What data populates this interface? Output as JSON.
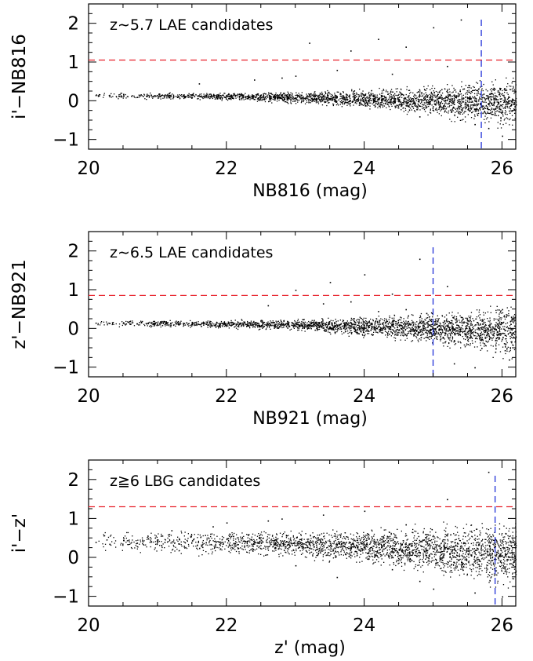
{
  "chart_data": [
    {
      "type": "scatter",
      "annotation": "z∼5.7 LAE candidates",
      "xlabel": "NB816 (mag)",
      "ylabel": "i'−NB816",
      "xlim": [
        20,
        26.2
      ],
      "ylim": [
        -1.25,
        2.5
      ],
      "xticks": [
        20,
        22,
        24,
        26
      ],
      "xtick_labels": [
        "20",
        "22",
        "24",
        "26"
      ],
      "yticks": [
        -1,
        0,
        1,
        2
      ],
      "ytick_labels": [
        "−1",
        "0",
        "1",
        "2"
      ],
      "color_cut": 1.05,
      "mag_limit": 25.7,
      "points": {
        "x": [
          20.1,
          20.3,
          20.5,
          20.7,
          20.9,
          21.1,
          21.3,
          21.5,
          21.7,
          21.9,
          22.1,
          22.3,
          22.5,
          22.7,
          22.9,
          23.1,
          23.3,
          23.5,
          23.7,
          23.9,
          24.1,
          24.3,
          24.5,
          24.7,
          24.9,
          25.1,
          25.3,
          25.5,
          25.7,
          25.9,
          26.1,
          23.2,
          23.8,
          24.2,
          24.6,
          25.0,
          25.4,
          22.8,
          23.6,
          24.4,
          25.2,
          25.8,
          21.6,
          22.4,
          23.0,
          24.8,
          25.6,
          26.0
        ],
        "y": [
          0.15,
          0.12,
          0.18,
          0.1,
          0.16,
          0.14,
          0.11,
          0.17,
          0.13,
          0.09,
          0.15,
          0.12,
          0.1,
          0.08,
          0.11,
          0.09,
          0.07,
          0.05,
          0.06,
          0.04,
          0.02,
          0.03,
          0.0,
          0.01,
          -0.02,
          -0.05,
          -0.08,
          -0.1,
          -0.15,
          -0.2,
          -0.25,
          1.5,
          1.3,
          1.6,
          1.4,
          1.9,
          2.1,
          0.6,
          0.8,
          0.7,
          0.9,
          -0.7,
          0.45,
          0.55,
          0.65,
          -0.4,
          -0.6,
          -0.9
        ]
      }
    },
    {
      "type": "scatter",
      "annotation": "z∼6.5 LAE candidates",
      "xlabel": "NB921 (mag)",
      "ylabel": "z'−NB921",
      "xlim": [
        20,
        26.2
      ],
      "ylim": [
        -1.25,
        2.5
      ],
      "xticks": [
        20,
        22,
        24,
        26
      ],
      "xtick_labels": [
        "20",
        "22",
        "24",
        "26"
      ],
      "yticks": [
        -1,
        0,
        1,
        2
      ],
      "ytick_labels": [
        "−1",
        "0",
        "1",
        "2"
      ],
      "color_cut": 0.85,
      "mag_limit": 25.0,
      "points": {
        "x": [
          20.1,
          20.3,
          20.5,
          20.7,
          20.9,
          21.1,
          21.3,
          21.5,
          21.7,
          21.9,
          22.1,
          22.3,
          22.5,
          22.7,
          22.9,
          23.1,
          23.3,
          23.5,
          23.7,
          23.9,
          24.1,
          24.3,
          24.5,
          24.7,
          24.9,
          25.1,
          25.3,
          25.5,
          25.7,
          25.9,
          26.1,
          23.0,
          23.5,
          24.0,
          24.4,
          24.8,
          25.2,
          25.6,
          22.6,
          23.8,
          24.6,
          25.4,
          25.9,
          26.0,
          25.3,
          24.9,
          24.2,
          23.4
        ],
        "y": [
          0.15,
          0.14,
          0.16,
          0.13,
          0.15,
          0.12,
          0.14,
          0.11,
          0.13,
          0.1,
          0.12,
          0.1,
          0.09,
          0.1,
          0.08,
          0.07,
          0.06,
          0.05,
          0.04,
          0.03,
          0.02,
          0.0,
          -0.02,
          -0.05,
          -0.1,
          -0.2,
          -0.3,
          -0.4,
          -0.5,
          -0.6,
          -0.8,
          1.0,
          1.2,
          1.4,
          0.9,
          1.8,
          1.1,
          -1.0,
          0.6,
          0.7,
          0.5,
          0.3,
          -0.3,
          0.5,
          -0.9,
          0.4,
          0.45,
          0.65
        ]
      }
    },
    {
      "type": "scatter",
      "annotation": "z≧6 LBG candidates",
      "xlabel": "z' (mag)",
      "ylabel": "i'−z'",
      "xlim": [
        20,
        26.2
      ],
      "ylim": [
        -1.25,
        2.5
      ],
      "xticks": [
        20,
        22,
        24,
        26
      ],
      "xtick_labels": [
        "20",
        "22",
        "24",
        "26"
      ],
      "yticks": [
        -1,
        0,
        1,
        2
      ],
      "ytick_labels": [
        "−1",
        "0",
        "1",
        "2"
      ],
      "color_cut": 1.3,
      "mag_limit": 25.9,
      "points": {
        "x": [
          20.1,
          20.3,
          20.5,
          20.7,
          20.9,
          21.1,
          21.3,
          21.5,
          21.7,
          21.9,
          22.1,
          22.3,
          22.5,
          22.7,
          22.9,
          23.1,
          23.3,
          23.5,
          23.7,
          23.9,
          24.1,
          24.3,
          24.5,
          24.7,
          24.9,
          25.1,
          25.3,
          25.5,
          25.7,
          25.9,
          26.1,
          22.0,
          22.8,
          23.4,
          24.0,
          24.6,
          25.2,
          25.8,
          23.0,
          23.6,
          24.4,
          25.0,
          25.6,
          21.2,
          21.8,
          22.6,
          24.8,
          26.0
        ],
        "y": [
          0.4,
          0.35,
          0.45,
          0.38,
          0.42,
          0.4,
          0.36,
          0.44,
          0.39,
          0.41,
          0.37,
          0.43,
          0.38,
          0.4,
          0.35,
          0.36,
          0.33,
          0.32,
          0.3,
          0.28,
          0.27,
          0.25,
          0.22,
          0.2,
          0.18,
          0.15,
          0.12,
          0.1,
          0.08,
          0.05,
          0.02,
          0.9,
          1.0,
          1.1,
          1.2,
          0.85,
          1.5,
          2.2,
          -0.2,
          -0.5,
          -0.3,
          -0.8,
          -0.9,
          0.7,
          0.8,
          0.95,
          -0.6,
          -1.0
        ]
      }
    }
  ]
}
